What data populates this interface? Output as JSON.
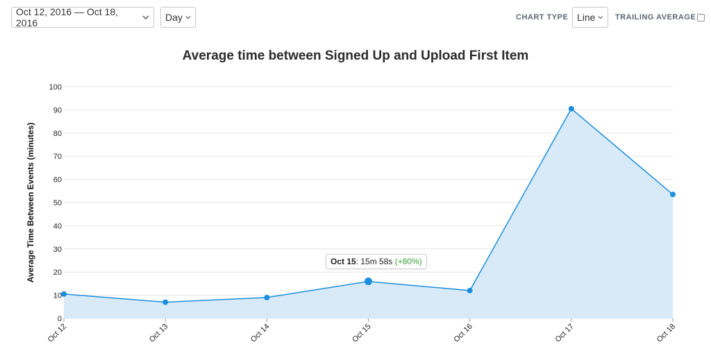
{
  "controls": {
    "date_range": "Oct 12, 2016 — Oct 18, 2016",
    "granularity": "Day",
    "chart_type_label": "CHART TYPE",
    "chart_type_value": "Line",
    "trailing_average_label": "TRAILING AVERAGE",
    "trailing_average_checked": false
  },
  "tooltip": {
    "date": "Oct 15",
    "separator": ":",
    "value": "15m 58s",
    "change": "(+80%)"
  },
  "colors": {
    "line": "#1a8fdc",
    "fill": "#d8eaf8",
    "grid": "#e6e6e6",
    "change_positive": "#3a9d3a"
  },
  "chart_data": {
    "type": "area",
    "title": "Average time between Signed Up and Upload First Item",
    "xlabel": "",
    "ylabel": "Average Time Between Events (minutes)",
    "categories": [
      "Oct 12",
      "Oct 13",
      "Oct 14",
      "Oct 15",
      "Oct 16",
      "Oct 17",
      "Oct 18"
    ],
    "series": [
      {
        "values": [
          10.5,
          7,
          9,
          15.97,
          12,
          90.5,
          53.5
        ]
      }
    ],
    "ylim": [
      0,
      100
    ],
    "yticks": [
      0,
      10,
      20,
      30,
      40,
      50,
      60,
      70,
      80,
      90,
      100
    ],
    "highlighted_index": 3,
    "grid": true,
    "legend": "none"
  }
}
